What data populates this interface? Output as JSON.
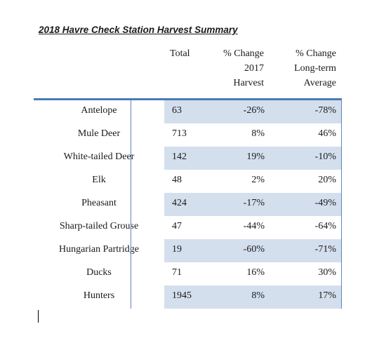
{
  "title": "2018 Havre Check Station Harvest Summary",
  "columns": {
    "total": "Total",
    "change_2017": [
      "% Change",
      "2017",
      "Harvest"
    ],
    "change_longterm": [
      "% Change",
      "Long-term",
      "Average"
    ]
  },
  "rows": [
    {
      "name": "Antelope",
      "total": "63",
      "change_2017": "-26%",
      "change_longterm": "-78%"
    },
    {
      "name": "Mule Deer",
      "total": "713",
      "change_2017": "8%",
      "change_longterm": "46%"
    },
    {
      "name": "White-tailed Deer",
      "total": "142",
      "change_2017": "19%",
      "change_longterm": "-10%"
    },
    {
      "name": "Elk",
      "total": "48",
      "change_2017": "2%",
      "change_longterm": "20%"
    },
    {
      "name": "Pheasant",
      "total": "424",
      "change_2017": "-17%",
      "change_longterm": "-49%"
    },
    {
      "name": "Sharp-tailed Grouse",
      "total": "47",
      "change_2017": "-44%",
      "change_longterm": "-64%"
    },
    {
      "name": "Hungarian Partridge",
      "total": "19",
      "change_2017": "-60%",
      "change_longterm": "-71%"
    },
    {
      "name": "Ducks",
      "total": "71",
      "change_2017": "16%",
      "change_longterm": "30%"
    },
    {
      "name": "Hunters",
      "total": "1945",
      "change_2017": "8%",
      "change_longterm": "17%"
    }
  ],
  "colors": {
    "accent_rule": "#4a7ab5",
    "row_shade": "#d4dfee"
  }
}
